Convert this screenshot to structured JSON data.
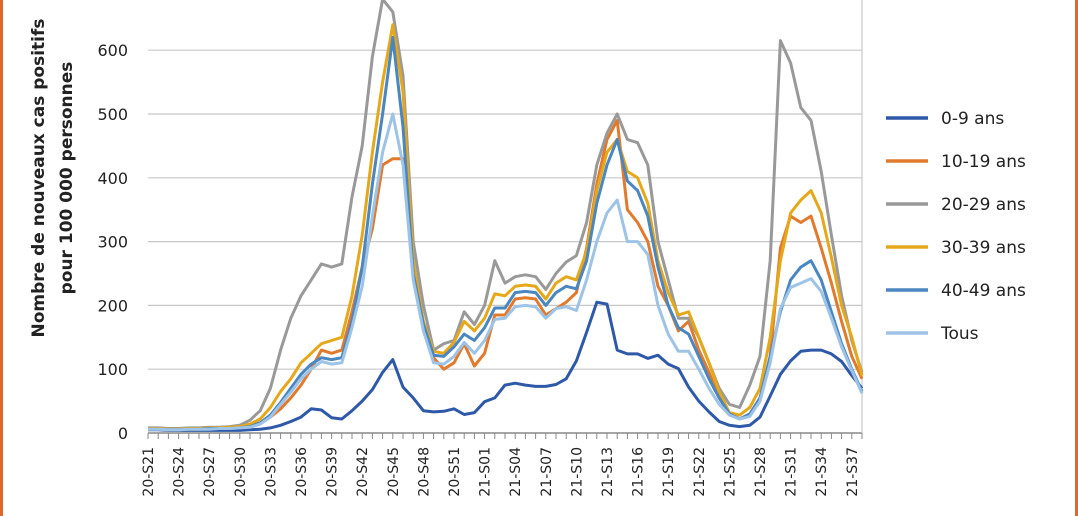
{
  "colors": {
    "border": "#e0672a",
    "grid": "#c8c8c8",
    "axis": "#888888"
  },
  "chart_data": {
    "type": "line",
    "ylabel_line1": "Nombre de nouveaux cas positifs",
    "ylabel_line2": "pour 100 000 personnes",
    "ylim": [
      0,
      650
    ],
    "yticks": [
      0,
      100,
      200,
      300,
      400,
      500,
      600
    ],
    "grid": true,
    "legend_position": "right",
    "xtick_labels": [
      "20-S21",
      "20-S24",
      "20-S27",
      "20-S30",
      "20-S33",
      "20-S36",
      "20-S39",
      "20-S42",
      "20-S45",
      "20-S48",
      "20-S51",
      "21-S01",
      "21-S04",
      "21-S07",
      "21-S10",
      "21-S13",
      "21-S16",
      "21-S19",
      "21-S22",
      "21-S25",
      "21-S28",
      "21-S31",
      "21-S34",
      "21-S37"
    ],
    "x": [
      "20-S21",
      "20-S22",
      "20-S23",
      "20-S24",
      "20-S25",
      "20-S26",
      "20-S27",
      "20-S28",
      "20-S29",
      "20-S30",
      "20-S31",
      "20-S32",
      "20-S33",
      "20-S34",
      "20-S35",
      "20-S36",
      "20-S37",
      "20-S38",
      "20-S39",
      "20-S40",
      "20-S41",
      "20-S42",
      "20-S43",
      "20-S44",
      "20-S45",
      "20-S46",
      "20-S47",
      "20-S48",
      "20-S49",
      "20-S50",
      "20-S51",
      "20-S52",
      "20-S53",
      "21-S01",
      "21-S02",
      "21-S03",
      "21-S04",
      "21-S05",
      "21-S06",
      "21-S07",
      "21-S08",
      "21-S09",
      "21-S10",
      "21-S11",
      "21-S12",
      "21-S13",
      "21-S14",
      "21-S15",
      "21-S16",
      "21-S17",
      "21-S18",
      "21-S19",
      "21-S20",
      "21-S21",
      "21-S22",
      "21-S23",
      "21-S24",
      "21-S25",
      "21-S26",
      "21-S27",
      "21-S28",
      "21-S29",
      "21-S30",
      "21-S31",
      "21-S32",
      "21-S33",
      "21-S34",
      "21-S35",
      "21-S36",
      "21-S37",
      "21-S38"
    ],
    "series": [
      {
        "name": "0-9 ans",
        "color": "#2e59a8",
        "values": [
          5,
          5,
          4,
          4,
          4,
          4,
          4,
          4,
          4,
          4,
          5,
          6,
          8,
          12,
          18,
          25,
          38,
          36,
          24,
          22,
          35,
          50,
          68,
          95,
          115,
          72,
          55,
          35,
          33,
          34,
          38,
          29,
          32,
          49,
          55,
          75,
          78,
          75,
          73,
          73,
          76,
          85,
          113,
          158,
          205,
          202,
          130,
          124,
          124,
          117,
          122,
          108,
          101,
          72,
          50,
          33,
          18,
          12,
          10,
          12,
          25,
          58,
          92,
          113,
          128,
          130,
          130,
          124,
          112,
          90,
          70
        ]
      },
      {
        "name": "10-19 ans",
        "color": "#e27a2e",
        "values": [
          6,
          6,
          5,
          5,
          6,
          6,
          7,
          7,
          8,
          9,
          12,
          16,
          25,
          38,
          55,
          75,
          100,
          130,
          125,
          130,
          190,
          260,
          320,
          420,
          430,
          430,
          260,
          170,
          118,
          100,
          110,
          140,
          105,
          125,
          185,
          185,
          210,
          212,
          210,
          185,
          195,
          205,
          220,
          290,
          390,
          460,
          490,
          350,
          330,
          300,
          230,
          200,
          160,
          175,
          130,
          95,
          55,
          30,
          22,
          28,
          50,
          120,
          290,
          340,
          330,
          340,
          290,
          235,
          175,
          120,
          85
        ]
      },
      {
        "name": "20-29 ans",
        "color": "#999999",
        "values": [
          8,
          8,
          7,
          7,
          8,
          8,
          9,
          9,
          10,
          12,
          20,
          35,
          70,
          130,
          180,
          215,
          240,
          265,
          260,
          265,
          370,
          450,
          590,
          680,
          660,
          560,
          300,
          200,
          130,
          140,
          145,
          190,
          170,
          200,
          270,
          235,
          245,
          248,
          245,
          225,
          250,
          268,
          278,
          330,
          420,
          470,
          500,
          460,
          455,
          420,
          300,
          240,
          180,
          180,
          150,
          110,
          70,
          45,
          40,
          75,
          120,
          270,
          615,
          580,
          510,
          490,
          410,
          310,
          215,
          145,
          95
        ]
      },
      {
        "name": "30-39 ans",
        "color": "#e6a81b",
        "values": [
          7,
          7,
          6,
          6,
          7,
          7,
          8,
          8,
          9,
          10,
          14,
          22,
          40,
          65,
          85,
          110,
          125,
          140,
          145,
          150,
          215,
          310,
          440,
          550,
          640,
          535,
          270,
          175,
          128,
          125,
          142,
          175,
          160,
          180,
          218,
          215,
          230,
          232,
          230,
          210,
          235,
          245,
          240,
          285,
          380,
          440,
          460,
          410,
          400,
          360,
          270,
          220,
          185,
          190,
          150,
          110,
          65,
          32,
          28,
          40,
          70,
          150,
          270,
          345,
          365,
          380,
          345,
          275,
          200,
          150,
          90
        ]
      },
      {
        "name": "40-49 ans",
        "color": "#4a86c0",
        "values": [
          6,
          6,
          5,
          5,
          6,
          6,
          7,
          7,
          7,
          8,
          10,
          16,
          28,
          48,
          70,
          92,
          108,
          118,
          115,
          118,
          175,
          260,
          390,
          500,
          620,
          480,
          250,
          170,
          122,
          120,
          135,
          155,
          145,
          165,
          196,
          196,
          220,
          222,
          220,
          200,
          220,
          230,
          226,
          270,
          360,
          420,
          460,
          395,
          380,
          340,
          260,
          200,
          165,
          155,
          120,
          85,
          55,
          30,
          22,
          30,
          55,
          120,
          190,
          240,
          260,
          270,
          240,
          190,
          140,
          100,
          65
        ]
      },
      {
        "name": "Tous",
        "color": "#9dc3e6",
        "values": [
          6,
          6,
          5,
          5,
          6,
          6,
          6,
          7,
          7,
          8,
          9,
          14,
          25,
          45,
          64,
          85,
          100,
          112,
          108,
          110,
          165,
          230,
          340,
          440,
          500,
          420,
          240,
          160,
          110,
          108,
          120,
          142,
          125,
          145,
          178,
          180,
          198,
          200,
          198,
          180,
          195,
          198,
          192,
          240,
          300,
          345,
          365,
          300,
          300,
          280,
          200,
          155,
          128,
          128,
          100,
          70,
          45,
          28,
          22,
          26,
          50,
          110,
          195,
          228,
          235,
          242,
          222,
          180,
          135,
          98,
          62
        ]
      }
    ]
  }
}
